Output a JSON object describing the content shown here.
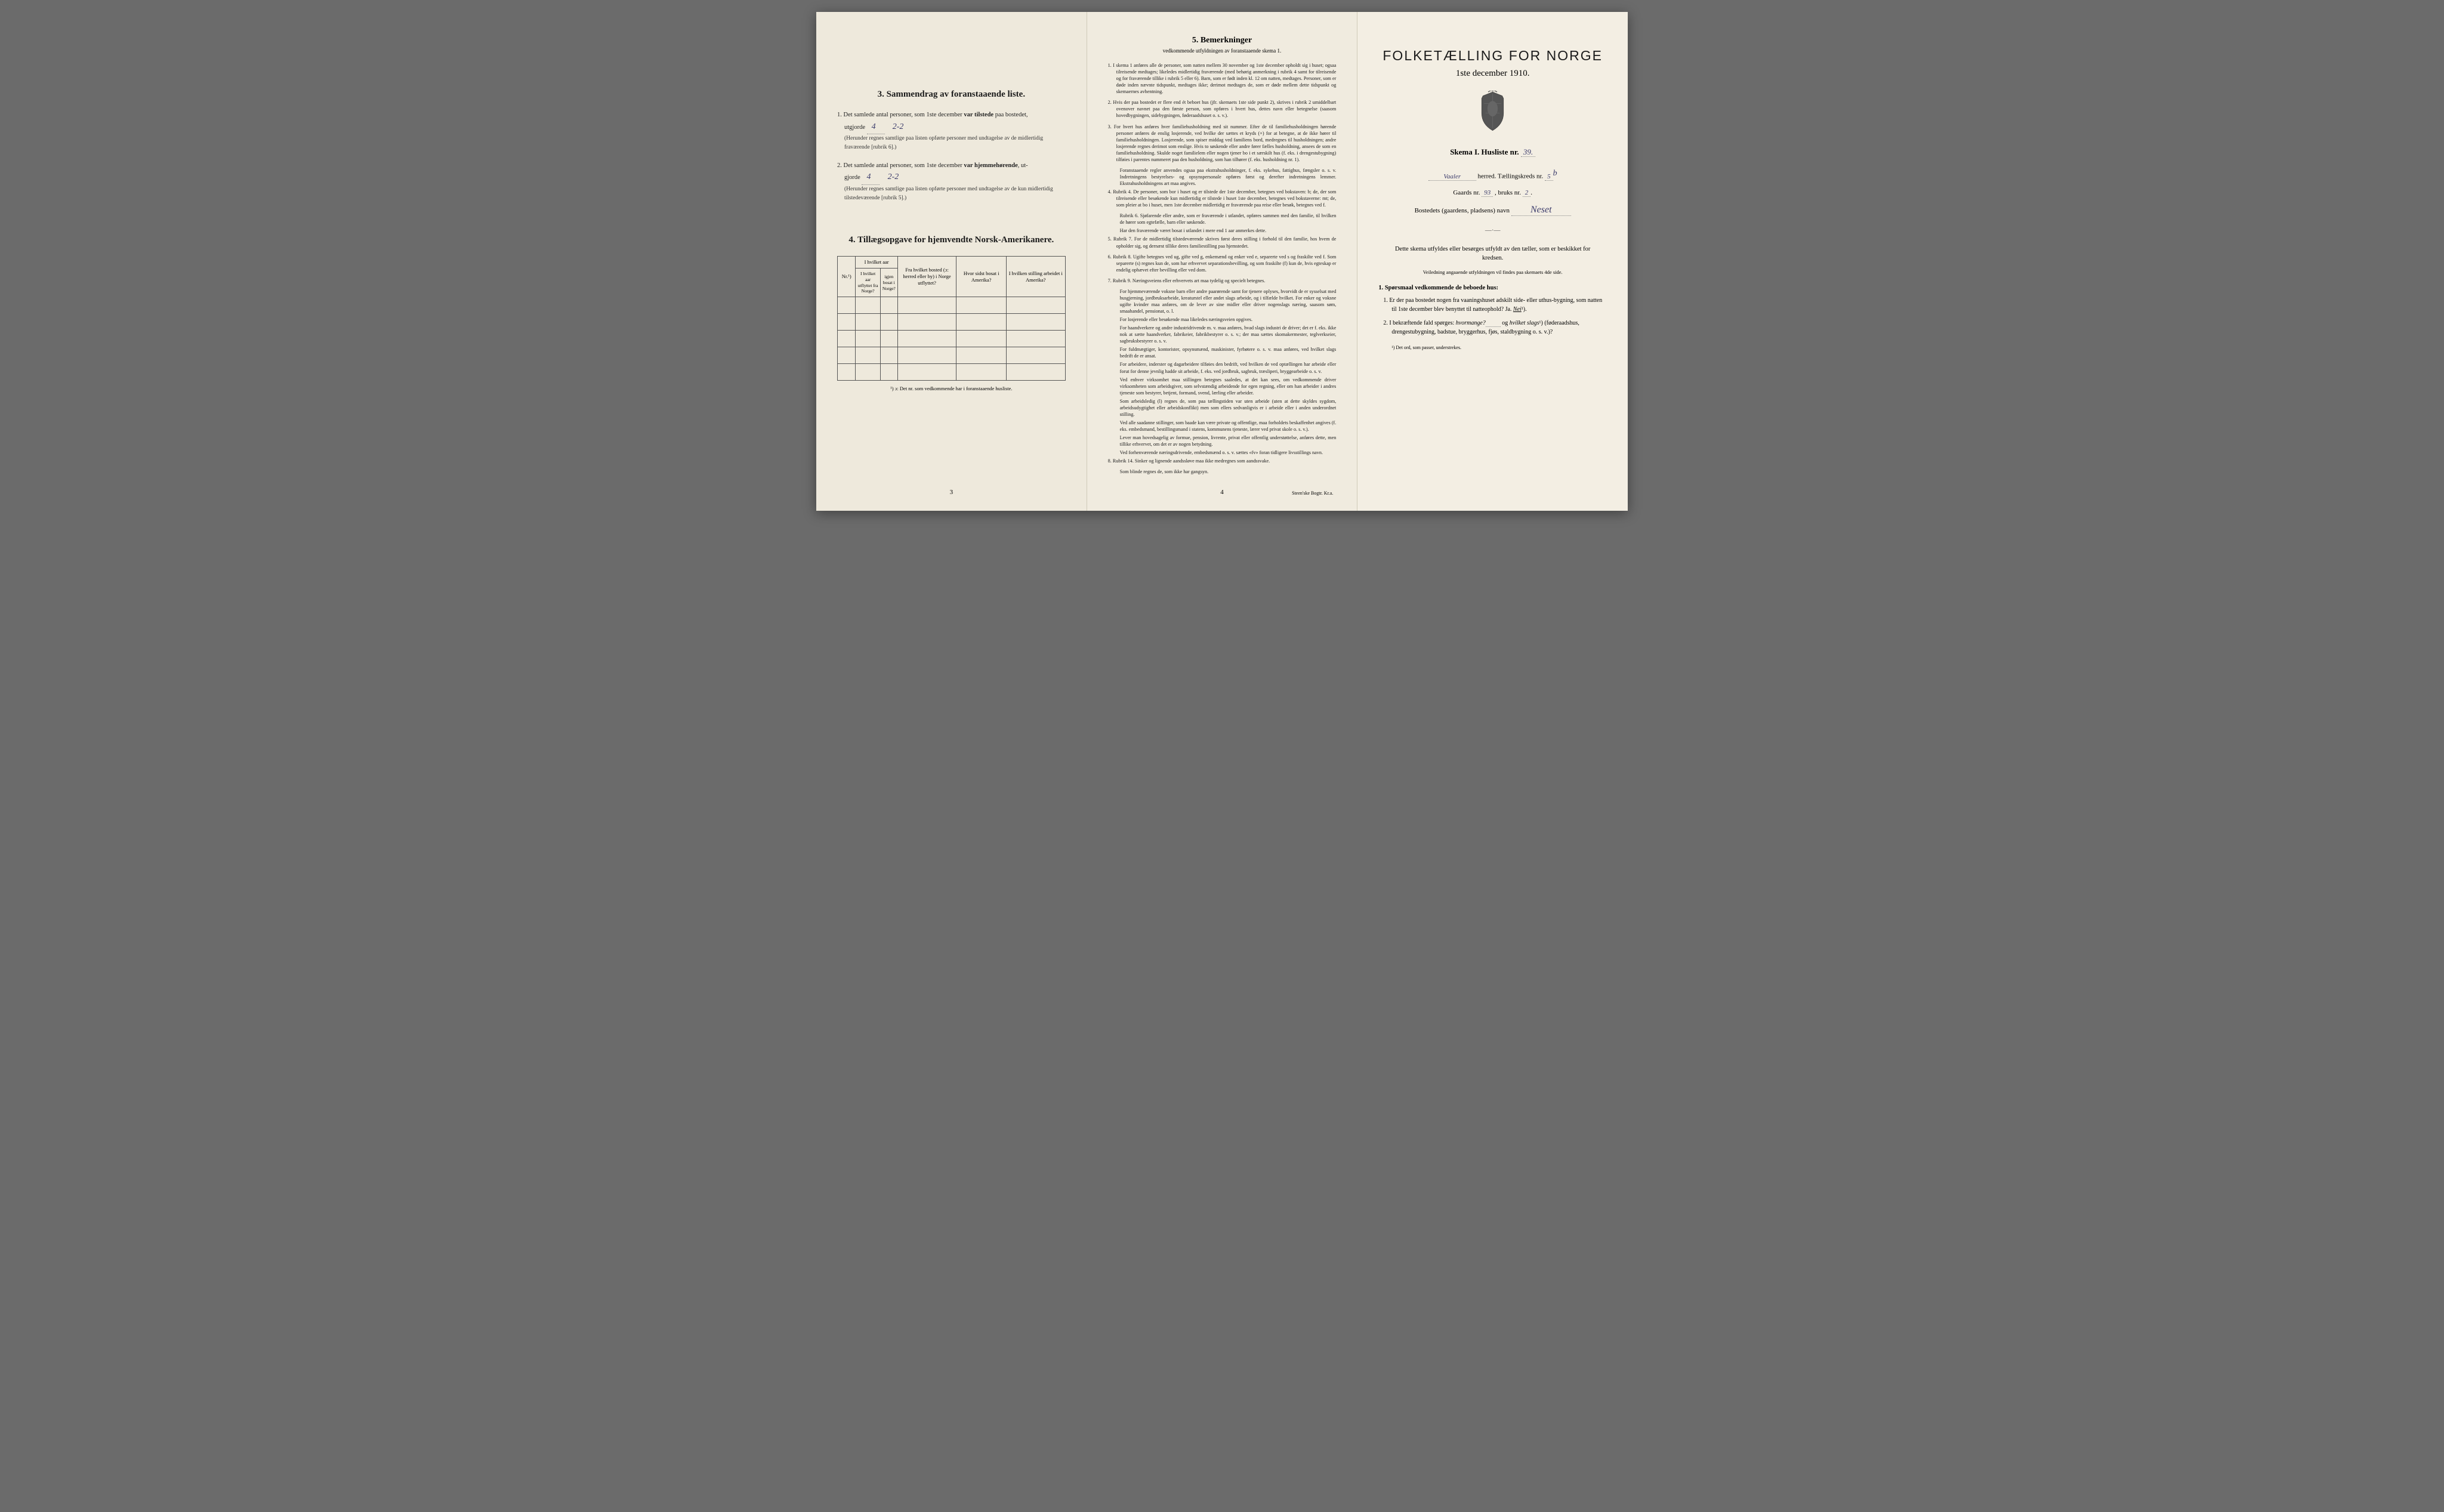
{
  "colors": {
    "paper": "#f2ede2",
    "paper1": "#eee9dc",
    "paper2": "#f0ebdf",
    "paper3": "#f3eee3",
    "ink": "#1a1a1a",
    "handwriting": "#3a3a6a",
    "border": "#555"
  },
  "page1": {
    "section3_title": "3.   Sammendrag av foranstaaende liste.",
    "item1_prefix": "1.  Det samlede antal personer, som 1ste december ",
    "item1_bold": "var tilstede",
    "item1_suffix": " paa bostedet,",
    "item1_line2_prefix": "utgjorde",
    "item1_value": "4",
    "item1_value2": "2-2",
    "item1_paren": "(Herunder regnes samtlige paa listen opførte personer med undtagelse av de midlertidig fraværende [rubrik 6].)",
    "item2_prefix": "2.  Det samlede antal personer, som 1ste december ",
    "item2_bold": "var hjemmehørende",
    "item2_suffix": ", ut-",
    "item2_line2_prefix": "gjorde",
    "item2_value": "4",
    "item2_value2": "2-2",
    "item2_paren": "(Herunder regnes samtlige paa listen opførte personer med undtagelse av de kun midlertidig tilstedeværende [rubrik 5].)",
    "section4_title": "4.   Tillægsopgave for hjemvendte Norsk-Amerikanere.",
    "table_headers": {
      "h1": "Nr.¹)",
      "h2": "I hvilket aar utflyttet fra Norge?",
      "h3": "igjen bosat i Norge?",
      "h4": "Fra hvilket bosted (ɔ: herred eller by) i Norge utflyttet?",
      "h5": "Hvor sidst bosat i Amerika?",
      "h6": "I hvilken stilling arbeidet i Amerika?"
    },
    "footnote": "¹) ɔ: Det nr. som vedkommende har i foranstaaende husliste.",
    "page_number": "3"
  },
  "page2": {
    "title": "5.   Bemerkninger",
    "subtitle": "vedkommende utfyldningen av foranstaaende skema 1.",
    "remarks": [
      "1.  I skema 1 anføres alle de personer, som natten mellem 30 november og 1ste december opholdt sig i huset; ogsaa tilreisende medtages; likeledes midlertidig fraværende (med behørig anmerkning i rubrik 4 samt for tilreisende og for fraværende tillike i rubrik 5 eller 6). Barn, som er født inden kl. 12 om natten, medtages. Personer, som er døde inden nævnte tidspunkt, medtages ikke; derimot medtages de, som er døde mellem dette tidspunkt og skemaernes avhentning.",
      "2.  Hvis der paa bostedet er flere end ét beboet hus (jfr. skemaets 1ste side punkt 2), skrives i rubrik 2 umiddelbart ovenover navnet paa den første person, som opføres i hvert hus, dettes navn eller betegnelse (saasom hovedbygningen, sidebygningen, føderaadshuset o. s. v.).",
      "3.  For hvert hus anføres hver familiehusholdning med sit nummer. Efter de til familiehusholdningen hørende personer anføres de enslig losjerende, ved hvilke der sættes et kryds (×) for at betegne, at de ikke hører til familiehusholdningen. Losjerende, som spiser middag ved familiens bord, medregnes til husholdningen; andre losjerende regnes derimot som enslige. Hvis to søskende eller andre fører fælles husholdning, ansees de som en familiehusholdning. Skulde noget familielem eller nogen tjener bo i et særskilt hus (f. eks. i drengestubygning) tilføies i parentes nummeret paa den husholdning, som han tilhører (f. eks. husholdning nr. 1).",
      "Foranstaaende regler anvendes ogsaa paa ekstrahusholdninger, f. eks. sykehus, fattighus, fængsler o. s. v. Indretningens bestyrelses- og opsynspersonale opføres først og derefter indretningens lemmer. Ekstrahusholdningens art maa angives.",
      "4.  Rubrik 4. De personer, som bor i huset og er tilstede der 1ste december, betegnes ved bokstaven: b; de, der som tilreisende eller besøkende kun midlertidig er tilstede i huset 1ste december, betegnes ved bokstaverne: mt; de, som pleier at bo i huset, men 1ste december midlertidig er fraværende paa reise eller besøk, betegnes ved f.",
      "Rubrik 6. Sjøfarende eller andre, som er fraværende i utlandet, opføres sammen med den familie, til hvilken de hører som egtefælle, barn eller søskende.",
      "Har den fraværende været bosat i utlandet i mere end 1 aar anmerkes dette.",
      "5.  Rubrik 7. For de midlertidig tilstedeværende skrives først deres stilling i forhold til den familie, hos hvem de opholder sig, og dernæst tillike deres familiestilling paa hjemstedet.",
      "6.  Rubrik 8. Ugifte betegnes ved ug, gifte ved g, enkemænd og enker ved e, separerte ved s og fraskilte ved f. Som separerte (s) regnes kun de, som har erhvervet separationsbevilling, og som fraskilte (f) kun de, hvis egteskap er endelig ophævet efter bevilling eller ved dom.",
      "7.  Rubrik 9. Næringsveiens eller erhvervets art maa tydelig og specielt betegnes.",
      "For hjemmeværende voksne barn eller andre paarørende samt for tjenere oplyses, hvorvidt de er sysselsat med husgjerning, jordbruksarbeide, kreaturstel eller andet slags arbeide, og i tilfælde hvilket. For enker og voksne ugifte kvinder maa anføres, om de lever av sine midler eller driver nogenslags næring, saasom søm, smaahandel, pensionat, o. l.",
      "For losjerende eller besøkende maa likeledes næringsveien opgives.",
      "For haandverkere og andre industridrivende m. v. maa anføres, hvad slags industri de driver; det er f. eks. ikke nok at sætte haandverker, fabrikeier, fabrikbestyrer o. s. v.; der maa sættes skomakermester, teglverkseier, sagbruksbestyrer o. s. v.",
      "For fuldmægtiger, kontorister, opsynsmænd, maskinister, fyrbøtere o. s. v. maa anføres, ved hvilket slags bedrift de er ansat.",
      "For arbeidere, inderster og dagarbeidere tilføies den bedrift, ved hvilken de ved optællingen har arbeide eller forut for denne jevnlig hadde sit arbeide, f. eks. ved jordbruk, sagbruk, træsliperi, bryggearbeide o. s. v.",
      "Ved enhver virksomhet maa stillingen betegnes saaledes, at det kan sees, om vedkommende driver virksomheten som arbeidsgiver, som selvstændig arbeidende for egen regning, eller om han arbeider i andres tjeneste som bestyrer, betjent, formand, svend, lærling eller arbeider.",
      "Som arbeidsledig (l) regnes de, som paa tællingstiden var uten arbeide (uten at dette skyldes sygdom, arbeidsudygtighet eller arbeidskonflikt) men som ellers sedvanligvis er i arbeide eller i anden underordnet stilling.",
      "Ved alle saadanne stillinger, som baade kan være private og offentlige, maa forholdets beskaffenhet angives (f. eks. embedsmand, bestillingsmand i statens, kommunens tjeneste, lærer ved privat skole o. s. v.).",
      "Lever man hovedsagelig av formue, pension, livrente, privat eller offentlig understøttelse, anføres dette, men tillike erhvervet, om det er av nogen betydning.",
      "Ved forhenværende næringsdrivende, embedsmænd o. s. v. sættes «fv» foran tidligere livsstillings navn.",
      "8.  Rubrik 14. Sinker og lignende aandssløve maa ikke medregnes som aandssvake.",
      "Som blinde regnes de, som ikke har gangsyn."
    ],
    "page_number": "4",
    "printer": "Steen'ske Bogtr.  Kr.a."
  },
  "page3": {
    "main_title": "FOLKETÆLLING FOR NORGE",
    "date": "1ste december 1910.",
    "skema_label": "Skema I.   Husliste nr.",
    "husliste_nr": "39.",
    "herred_value": "Vaaler",
    "herred_label": " herred.   Tællingskreds nr.",
    "kreds_nr": "5",
    "kreds_suffix": "b",
    "gaards_label": "Gaards nr.",
    "gaards_nr": "93",
    "bruks_label": ", bruks nr.",
    "bruks_nr": "2",
    "bosted_label": "Bostedets (gaardens, pladsens) navn",
    "bosted_value": "Neset",
    "instruction": "Dette skema utfyldes eller besørges utfyldt av den tæller, som er beskikket for kredsen.",
    "instruction_sub": "Veiledning angaaende utfyldningen vil findes paa skemaets 4de side.",
    "q_title": "1. Spørsmaal vedkommende de beboede hus:",
    "q1": "1.  Er der paa bostedet nogen fra vaaningshuset adskilt side- eller uthus-bygning, som natten til 1ste december blev benyttet til natteophold?   Ja.   ",
    "q1_answer": "Nei",
    "q1_suffix": "¹).",
    "q2_prefix": "2.  I bekræftende fald spørges: ",
    "q2_italic1": "hvormange?",
    "q2_mid": "og ",
    "q2_italic2": "hvilket slags",
    "q2_suffix": "¹) (føderaadshus, drengestubygning, badstue, bryggerhus, fjøs, staldbygning o. s. v.)?",
    "footnote": "¹) Det ord, som passer, understrekes."
  }
}
